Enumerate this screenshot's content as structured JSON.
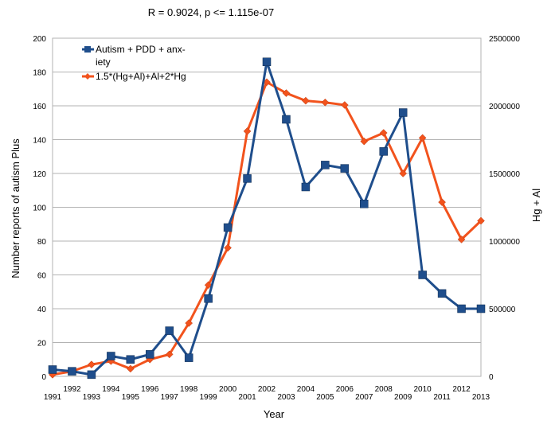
{
  "chart_data": {
    "type": "line",
    "title": "R = 0.9024, p <= 1.115e-07",
    "xlabel": "Year",
    "ylabel": "Number reports of autism Plus",
    "y2label": "Hg + Al",
    "ylim": [
      0,
      200
    ],
    "y2lim": [
      0,
      2500000
    ],
    "yticks": [
      "0",
      "20",
      "40",
      "60",
      "80",
      "100",
      "120",
      "140",
      "160",
      "180",
      "200"
    ],
    "y2ticks": [
      "0",
      "500000",
      "1000000",
      "1500000",
      "2000000",
      "2500000"
    ],
    "xticks": [
      "1991",
      "1992",
      "1993",
      "1994",
      "1995",
      "1996",
      "1997",
      "1998",
      "1999",
      "2000",
      "2001",
      "2002",
      "2003",
      "2004",
      "2005",
      "2006",
      "2007",
      "2008",
      "2009",
      "2010",
      "2011",
      "2012",
      "2013"
    ],
    "x": [
      1991,
      1992,
      1993,
      1994,
      1995,
      1996,
      1997,
      1998,
      1999,
      2000,
      2001,
      2002,
      2003,
      2004,
      2005,
      2006,
      2007,
      2008,
      2009,
      2010,
      2011,
      2012,
      2013
    ],
    "grid": true,
    "legend_position": "top-left",
    "series": [
      {
        "name": "Autism + PDD + anx-iety",
        "legend_lines": [
          "Autism + PDD + anx-",
          "iety"
        ],
        "axis": "left",
        "color": "#1f4e8c",
        "marker": "square",
        "values": [
          4,
          3,
          1,
          12,
          10,
          13,
          27,
          11,
          46,
          88,
          117,
          186,
          152,
          112,
          125,
          123,
          102,
          133,
          156,
          60,
          49,
          40,
          40
        ]
      },
      {
        "name": "1.5*(Hg+Al)+Al+2*Hg",
        "legend_lines": [
          "1.5*(Hg+Al)+Al+2*Hg"
        ],
        "axis": "right",
        "color": "#f2531d",
        "marker": "diamond",
        "values": [
          12500,
          37500,
          87500,
          112500,
          56250,
          125000,
          162500,
          393750,
          675000,
          950000,
          1812500,
          2175000,
          2093750,
          2037500,
          2025000,
          2006250,
          1737500,
          1800000,
          1500000,
          1762500,
          1287500,
          1012500,
          1150000
        ]
      }
    ]
  }
}
